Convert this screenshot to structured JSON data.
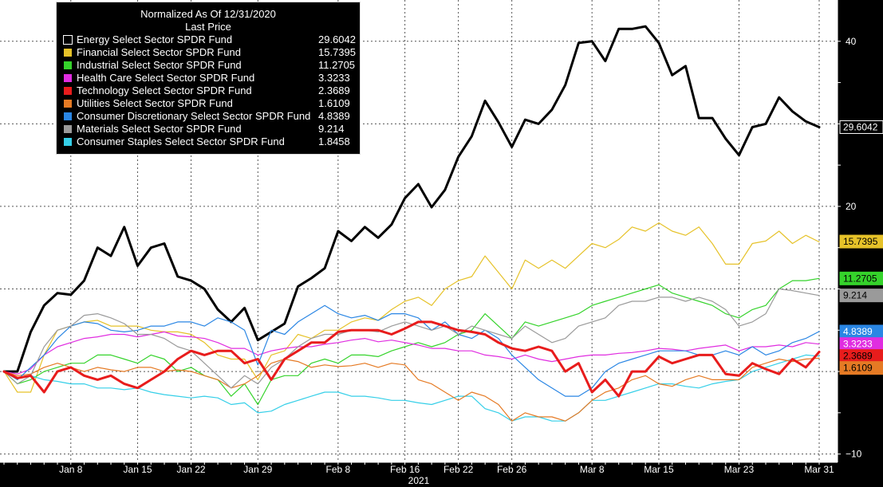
{
  "legend": {
    "title": "Normalized As Of 12/31/2020",
    "subtitle": "Last Price",
    "items": [
      {
        "name": "Energy Select Sector SPDR Fund",
        "value": "29.6042",
        "color": "#000000"
      },
      {
        "name": "Financial Select Sector SPDR Fund",
        "value": "15.7395",
        "color": "#e6c229"
      },
      {
        "name": "Industrial Select Sector SPDR Fund",
        "value": "11.2705",
        "color": "#35d32b"
      },
      {
        "name": "Health Care Select Sector SPDR Fund",
        "value": "3.3233",
        "color": "#e02de0"
      },
      {
        "name": "Technology Select Sector SPDR Fund",
        "value": "2.3689",
        "color": "#e81c1c"
      },
      {
        "name": "Utilities Select Sector SPDR Fund",
        "value": "1.6109",
        "color": "#e57a24"
      },
      {
        "name": "Consumer Discretionary Select Sector SPDR Fund",
        "value": "4.8389",
        "color": "#2a86e4"
      },
      {
        "name": "Materials Select Sector SPDR Fund",
        "value": "9.214",
        "color": "#9a9a9a"
      },
      {
        "name": "Consumer Staples Select Sector SPDR Fund",
        "value": "1.8458",
        "color": "#35cfe8"
      }
    ]
  },
  "chart_data": {
    "type": "line",
    "title": "Normalized As Of 12/31/2020",
    "subtitle": "Last Price",
    "xlabel": "2021",
    "ylabel": "",
    "x_tick_labels": [
      "Jan 8",
      "Jan 15",
      "Jan 22",
      "Jan 29",
      "Feb 8",
      "Feb 16",
      "Feb 22",
      "Feb 26",
      "Mar 8",
      "Mar 15",
      "Mar 23",
      "Mar 31"
    ],
    "y_ticks": [
      -10,
      0,
      20,
      40
    ],
    "ylim": [
      -11,
      45
    ],
    "grid": true,
    "legend_position": "top-left",
    "x": [
      "Dec 31",
      "Jan 4",
      "Jan 5",
      "Jan 6",
      "Jan 7",
      "Jan 8",
      "Jan 11",
      "Jan 12",
      "Jan 13",
      "Jan 14",
      "Jan 15",
      "Jan 19",
      "Jan 20",
      "Jan 21",
      "Jan 22",
      "Jan 25",
      "Jan 26",
      "Jan 27",
      "Jan 28",
      "Jan 29",
      "Feb 1",
      "Feb 2",
      "Feb 3",
      "Feb 4",
      "Feb 5",
      "Feb 8",
      "Feb 9",
      "Feb 10",
      "Feb 11",
      "Feb 12",
      "Feb 16",
      "Feb 17",
      "Feb 18",
      "Feb 19",
      "Feb 22",
      "Feb 23",
      "Feb 24",
      "Feb 25",
      "Feb 26",
      "Mar 1",
      "Mar 2",
      "Mar 3",
      "Mar 4",
      "Mar 5",
      "Mar 8",
      "Mar 9",
      "Mar 10",
      "Mar 11",
      "Mar 12",
      "Mar 15",
      "Mar 16",
      "Mar 17",
      "Mar 18",
      "Mar 19",
      "Mar 22",
      "Mar 23",
      "Mar 24",
      "Mar 25",
      "Mar 26",
      "Mar 29",
      "Mar 30",
      "Mar 31"
    ],
    "series": [
      {
        "name": "Energy Select Sector SPDR Fund",
        "color": "#000000",
        "width": 3,
        "values": [
          0,
          0,
          4.8,
          8,
          9.5,
          9.3,
          11,
          15,
          14,
          17.5,
          12.8,
          15,
          15.5,
          11.5,
          11,
          10,
          7.5,
          6,
          7.7,
          3.8,
          4.8,
          5.8,
          10.3,
          11.3,
          12.5,
          17,
          15.8,
          17.5,
          16.2,
          17.8,
          21,
          22.7,
          19.9,
          22,
          26,
          28.5,
          32.8,
          30.2,
          27.2,
          30.5,
          30,
          31.7,
          34.7,
          39.8,
          40,
          37.6,
          41.5,
          41.5,
          41.8,
          39.8,
          35.9,
          37,
          30.7,
          30.7,
          28.2,
          26.2,
          29.6,
          30,
          33.2,
          31.5,
          30.3,
          29.6
        ]
      },
      {
        "name": "Financial Select Sector SPDR Fund",
        "color": "#e6c229",
        "width": 1.2,
        "values": [
          0,
          -2.5,
          -2.5,
          2,
          5,
          5.5,
          6,
          6.2,
          5.5,
          5.5,
          5.5,
          5,
          4.8,
          4.8,
          4.5,
          3.5,
          2,
          1.5,
          1.5,
          -1,
          2,
          2.5,
          4.5,
          4,
          5,
          5,
          6,
          6.5,
          6.2,
          7.5,
          8.5,
          9,
          8,
          10,
          11,
          11.5,
          14,
          12,
          10,
          13.5,
          12.5,
          13.5,
          12.5,
          14,
          15.5,
          15,
          16,
          17.5,
          17,
          18,
          17,
          16.5,
          17.5,
          15.5,
          13,
          13,
          15.5,
          15.8,
          17,
          15.5,
          16.5,
          15.7
        ]
      },
      {
        "name": "Industrial Select Sector SPDR Fund",
        "color": "#35d32b",
        "width": 1.2,
        "values": [
          0,
          -1.5,
          -1,
          0,
          0.5,
          1,
          1,
          2,
          2,
          1.5,
          1,
          2,
          1.5,
          0,
          0.5,
          -0.5,
          -1,
          -3,
          -1.5,
          -4,
          -1,
          -0.5,
          -0.5,
          1,
          1.5,
          1,
          2,
          2,
          1.8,
          2.5,
          3,
          3.5,
          3,
          3.5,
          4.5,
          5,
          7,
          5.5,
          4,
          6,
          5.5,
          6,
          6.5,
          7,
          8,
          8.5,
          9,
          9.5,
          10,
          10.5,
          9.5,
          9,
          8.5,
          8,
          7,
          6.5,
          7.5,
          8,
          10,
          11,
          11,
          11.27
        ]
      },
      {
        "name": "Health Care Select Sector SPDR Fund",
        "color": "#e02de0",
        "width": 1.2,
        "values": [
          0,
          -0.3,
          0.3,
          2,
          3,
          3.5,
          4,
          4.2,
          4.5,
          4.5,
          4.2,
          4.5,
          4.8,
          4.3,
          4.2,
          4,
          3.5,
          2.8,
          2.8,
          2,
          2.5,
          2.8,
          3,
          3,
          3.3,
          3.5,
          3.8,
          4,
          3.6,
          3.8,
          3.5,
          3.2,
          2.8,
          2.8,
          2.5,
          2.5,
          2,
          1.8,
          1.5,
          2,
          1.5,
          1.2,
          1.5,
          1.8,
          2,
          2,
          2.2,
          2.3,
          2.5,
          2.8,
          2.7,
          2.5,
          2.8,
          3,
          3.2,
          2.5,
          3,
          3,
          3.2,
          3,
          3.5,
          3.32
        ]
      },
      {
        "name": "Consumer Staples Select Sector SPDR Fund",
        "color": "#35cfe8",
        "width": 1.2,
        "values": [
          0,
          -0.8,
          -0.5,
          -1,
          -1.2,
          -1.5,
          -1.5,
          -2,
          -2,
          -2.2,
          -2,
          -2.5,
          -2.8,
          -3,
          -3.2,
          -3,
          -3.2,
          -4,
          -3.8,
          -5,
          -4.8,
          -4,
          -3.5,
          -3,
          -2.5,
          -2.5,
          -3,
          -3,
          -3.2,
          -3.5,
          -3.5,
          -3.8,
          -4,
          -3.5,
          -3,
          -3,
          -4.5,
          -5,
          -6,
          -5.5,
          -5.5,
          -6,
          -6,
          -5,
          -3.5,
          -3.5,
          -3,
          -2.5,
          -2,
          -1.5,
          -1.5,
          -1.8,
          -2,
          -1.5,
          -1.2,
          -1,
          0,
          0.5,
          1,
          1.5,
          2,
          1.85
        ]
      },
      {
        "name": "Utilities Select Sector SPDR Fund",
        "color": "#e57a24",
        "width": 1.2,
        "values": [
          0,
          -0.5,
          -0.3,
          0.5,
          1,
          0.5,
          0,
          0.5,
          0.2,
          0,
          0.5,
          0.5,
          0,
          0.2,
          0,
          -0.5,
          -1,
          -2,
          -1.5,
          -0.5,
          1,
          1.5,
          1.2,
          0.5,
          0.8,
          0.6,
          0.7,
          1,
          0.5,
          1,
          0.8,
          -1,
          -1.5,
          -2.5,
          -3.5,
          -2.5,
          -3,
          -4,
          -6,
          -5,
          -5.5,
          -5.5,
          -6,
          -5,
          -3.5,
          -2.5,
          -2,
          -1,
          -0.5,
          -1.5,
          -1.8,
          -1,
          -0.5,
          -1,
          -1,
          -1,
          0.5,
          1,
          1.5,
          1.2,
          1.5,
          1.61
        ]
      },
      {
        "name": "Consumer Discretionary Select Sector SPDR Fund",
        "color": "#2a86e4",
        "width": 1.2,
        "values": [
          0,
          -1,
          0.5,
          2,
          4,
          5.5,
          6,
          5.8,
          5,
          4.8,
          5,
          5.5,
          5.5,
          6,
          6,
          5.5,
          6.5,
          6,
          5,
          0.8,
          5,
          4.5,
          6,
          7,
          8,
          7,
          6.5,
          6.8,
          6.2,
          7,
          7,
          6.5,
          5,
          6,
          4.5,
          4,
          5,
          4,
          2,
          0.5,
          -1,
          -2,
          -3,
          -3,
          -2,
          0,
          1,
          1.5,
          2,
          2.5,
          2.5,
          2.5,
          2,
          2,
          2.5,
          2,
          3,
          2,
          2.5,
          3.5,
          4,
          4.84
        ]
      },
      {
        "name": "Materials Select Sector SPDR Fund",
        "color": "#9a9a9a",
        "width": 1.2,
        "values": [
          0,
          -1.5,
          -0.5,
          3,
          5,
          5.5,
          6.8,
          7,
          6.5,
          5.8,
          4.5,
          4.5,
          4,
          3,
          2.5,
          1,
          -0.5,
          -2,
          -0.5,
          -1.5,
          0.5,
          1.5,
          3,
          4,
          4.5,
          4.5,
          5,
          5,
          4.8,
          5.5,
          6,
          5.5,
          5,
          5.5,
          4.5,
          5.5,
          5,
          4.5,
          4,
          5.5,
          4.5,
          3.5,
          4,
          5.5,
          6,
          6.5,
          8,
          8.5,
          8.5,
          9,
          9,
          8.5,
          9,
          8.5,
          7.5,
          5.5,
          6,
          7,
          10,
          9.8,
          9.5,
          9.21
        ]
      },
      {
        "name": "Technology Select Sector SPDR Fund",
        "color": "#e81c1c",
        "width": 3,
        "values": [
          0,
          -0.8,
          -0.5,
          -2.5,
          0,
          0.5,
          -0.5,
          -1,
          -0.5,
          -1.5,
          -2,
          -1,
          0,
          1.5,
          2.5,
          2,
          2.5,
          2.5,
          1,
          1.5,
          -1,
          1.5,
          2.5,
          3.5,
          3.5,
          4.8,
          5,
          5,
          5,
          4.5,
          5.2,
          6,
          6,
          5.5,
          5,
          4.8,
          4.5,
          3.5,
          2.8,
          2.5,
          3,
          2.5,
          0,
          1,
          -2.5,
          -1,
          -3,
          0,
          0,
          1.8,
          1,
          1.5,
          2,
          2,
          -0.3,
          -0.5,
          1,
          0.3,
          -0.3,
          1.5,
          0.5,
          2.37
        ]
      }
    ],
    "end_badges": [
      {
        "text": "29.6042",
        "value": 29.6042,
        "bg": "#000000",
        "fg": "#ffffff",
        "border": "#ffffff"
      },
      {
        "text": "15.7395",
        "value": 15.7395,
        "bg": "#e6c229",
        "fg": "#000000",
        "border": "#e6c229"
      },
      {
        "text": "11.2705",
        "value": 11.2705,
        "bg": "#35d32b",
        "fg": "#000000",
        "border": "#35d32b"
      },
      {
        "text": "9.214",
        "value": 9.214,
        "bg": "#9a9a9a",
        "fg": "#000000",
        "border": "#9a9a9a"
      },
      {
        "text": "4.8389",
        "value": 4.8389,
        "bg": "#2a86e4",
        "fg": "#ffffff",
        "border": "#2a86e4"
      },
      {
        "text": "3.3233",
        "value": 3.3233,
        "bg": "#e02de0",
        "fg": "#ffffff",
        "border": "#e02de0"
      },
      {
        "text": "2.3689",
        "value": 2.3689,
        "bg": "#e81c1c",
        "fg": "#000000",
        "border": "#e81c1c"
      },
      {
        "text": "1.6109",
        "value": 1.6109,
        "bg": "#e57a24",
        "fg": "#000000",
        "border": "#e57a24"
      }
    ]
  }
}
